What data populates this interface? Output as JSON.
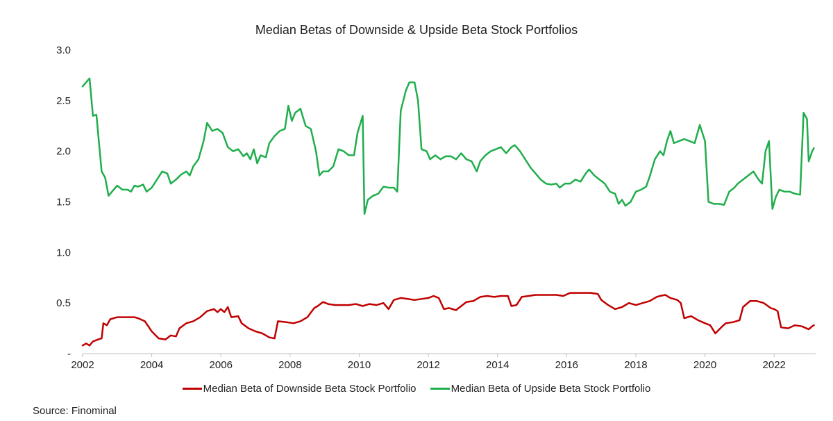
{
  "source": "Source: Finominal",
  "chart_data": {
    "type": "line",
    "title": "Median Betas of Downside & Upside Beta Stock Portfolios",
    "xlabel": "",
    "ylabel": "",
    "xlim": [
      2002,
      2023.2
    ],
    "ylim": [
      0,
      3.0
    ],
    "x_ticks": [
      2002,
      2004,
      2006,
      2008,
      2010,
      2012,
      2014,
      2016,
      2018,
      2020,
      2022
    ],
    "x_tick_labels": [
      "2002",
      "2004",
      "2006",
      "2008",
      "2010",
      "2012",
      "2014",
      "2016",
      "2018",
      "2020",
      "2022"
    ],
    "y_ticks": [
      0,
      0.5,
      1.0,
      1.5,
      2.0,
      2.5,
      3.0
    ],
    "y_tick_labels": [
      "-",
      "0.5",
      "1.0",
      "1.5",
      "2.0",
      "2.5",
      "3.0"
    ],
    "grid": false,
    "legend_position": "bottom",
    "series": [
      {
        "name": "Median Beta of Downside Beta Stock Portfolio",
        "color": "#c00000",
        "points": [
          [
            2002.0,
            0.08
          ],
          [
            2002.1,
            0.1
          ],
          [
            2002.2,
            0.08
          ],
          [
            2002.3,
            0.12
          ],
          [
            2002.45,
            0.14
          ],
          [
            2002.55,
            0.15
          ],
          [
            2002.6,
            0.3
          ],
          [
            2002.7,
            0.28
          ],
          [
            2002.8,
            0.34
          ],
          [
            2003.0,
            0.36
          ],
          [
            2003.3,
            0.36
          ],
          [
            2003.5,
            0.36
          ],
          [
            2003.6,
            0.35
          ],
          [
            2003.8,
            0.32
          ],
          [
            2004.0,
            0.22
          ],
          [
            2004.2,
            0.15
          ],
          [
            2004.4,
            0.14
          ],
          [
            2004.55,
            0.18
          ],
          [
            2004.7,
            0.17
          ],
          [
            2004.8,
            0.25
          ],
          [
            2005.0,
            0.3
          ],
          [
            2005.2,
            0.32
          ],
          [
            2005.4,
            0.36
          ],
          [
            2005.6,
            0.42
          ],
          [
            2005.8,
            0.44
          ],
          [
            2005.9,
            0.41
          ],
          [
            2006.0,
            0.44
          ],
          [
            2006.1,
            0.41
          ],
          [
            2006.2,
            0.46
          ],
          [
            2006.3,
            0.36
          ],
          [
            2006.5,
            0.37
          ],
          [
            2006.6,
            0.3
          ],
          [
            2006.8,
            0.25
          ],
          [
            2007.0,
            0.22
          ],
          [
            2007.2,
            0.2
          ],
          [
            2007.4,
            0.16
          ],
          [
            2007.55,
            0.15
          ],
          [
            2007.65,
            0.32
          ],
          [
            2007.9,
            0.31
          ],
          [
            2008.1,
            0.3
          ],
          [
            2008.3,
            0.32
          ],
          [
            2008.5,
            0.36
          ],
          [
            2008.7,
            0.45
          ],
          [
            2008.8,
            0.47
          ],
          [
            2008.95,
            0.51
          ],
          [
            2009.1,
            0.49
          ],
          [
            2009.3,
            0.48
          ],
          [
            2009.5,
            0.48
          ],
          [
            2009.7,
            0.48
          ],
          [
            2009.9,
            0.49
          ],
          [
            2010.1,
            0.47
          ],
          [
            2010.3,
            0.49
          ],
          [
            2010.5,
            0.48
          ],
          [
            2010.7,
            0.5
          ],
          [
            2010.85,
            0.44
          ],
          [
            2011.0,
            0.53
          ],
          [
            2011.2,
            0.55
          ],
          [
            2011.4,
            0.54
          ],
          [
            2011.6,
            0.53
          ],
          [
            2011.8,
            0.54
          ],
          [
            2012.0,
            0.55
          ],
          [
            2012.15,
            0.57
          ],
          [
            2012.3,
            0.55
          ],
          [
            2012.45,
            0.44
          ],
          [
            2012.6,
            0.45
          ],
          [
            2012.8,
            0.43
          ],
          [
            2012.95,
            0.47
          ],
          [
            2013.1,
            0.51
          ],
          [
            2013.3,
            0.52
          ],
          [
            2013.5,
            0.56
          ],
          [
            2013.7,
            0.57
          ],
          [
            2013.9,
            0.56
          ],
          [
            2014.1,
            0.57
          ],
          [
            2014.3,
            0.57
          ],
          [
            2014.4,
            0.47
          ],
          [
            2014.55,
            0.48
          ],
          [
            2014.7,
            0.56
          ],
          [
            2014.9,
            0.57
          ],
          [
            2015.1,
            0.58
          ],
          [
            2015.3,
            0.58
          ],
          [
            2015.5,
            0.58
          ],
          [
            2015.7,
            0.58
          ],
          [
            2015.9,
            0.57
          ],
          [
            2016.1,
            0.6
          ],
          [
            2016.3,
            0.6
          ],
          [
            2016.5,
            0.6
          ],
          [
            2016.7,
            0.6
          ],
          [
            2016.9,
            0.59
          ],
          [
            2017.0,
            0.53
          ],
          [
            2017.2,
            0.48
          ],
          [
            2017.4,
            0.44
          ],
          [
            2017.6,
            0.46
          ],
          [
            2017.8,
            0.5
          ],
          [
            2018.0,
            0.48
          ],
          [
            2018.2,
            0.5
          ],
          [
            2018.4,
            0.52
          ],
          [
            2018.6,
            0.56
          ],
          [
            2018.7,
            0.57
          ],
          [
            2018.85,
            0.58
          ],
          [
            2019.0,
            0.55
          ],
          [
            2019.2,
            0.53
          ],
          [
            2019.3,
            0.5
          ],
          [
            2019.4,
            0.35
          ],
          [
            2019.6,
            0.37
          ],
          [
            2019.8,
            0.33
          ],
          [
            2020.0,
            0.3
          ],
          [
            2020.15,
            0.28
          ],
          [
            2020.3,
            0.2
          ],
          [
            2020.5,
            0.27
          ],
          [
            2020.6,
            0.3
          ],
          [
            2020.8,
            0.31
          ],
          [
            2021.0,
            0.33
          ],
          [
            2021.1,
            0.46
          ],
          [
            2021.3,
            0.52
          ],
          [
            2021.5,
            0.52
          ],
          [
            2021.7,
            0.5
          ],
          [
            2021.9,
            0.45
          ],
          [
            2022.0,
            0.44
          ],
          [
            2022.1,
            0.42
          ],
          [
            2022.2,
            0.26
          ],
          [
            2022.4,
            0.25
          ],
          [
            2022.6,
            0.28
          ],
          [
            2022.8,
            0.27
          ],
          [
            2023.0,
            0.24
          ],
          [
            2023.1,
            0.27
          ],
          [
            2023.15,
            0.28
          ]
        ]
      },
      {
        "name": "Median Beta of Upside Beta Stock Portfolio",
        "color": "#1fae4b",
        "points": [
          [
            2002.0,
            2.64
          ],
          [
            2002.1,
            2.68
          ],
          [
            2002.2,
            2.72
          ],
          [
            2002.3,
            2.35
          ],
          [
            2002.4,
            2.36
          ],
          [
            2002.55,
            1.8
          ],
          [
            2002.65,
            1.74
          ],
          [
            2002.75,
            1.56
          ],
          [
            2002.85,
            1.6
          ],
          [
            2003.0,
            1.66
          ],
          [
            2003.15,
            1.62
          ],
          [
            2003.3,
            1.62
          ],
          [
            2003.4,
            1.6
          ],
          [
            2003.5,
            1.66
          ],
          [
            2003.6,
            1.65
          ],
          [
            2003.75,
            1.67
          ],
          [
            2003.85,
            1.6
          ],
          [
            2004.0,
            1.64
          ],
          [
            2004.15,
            1.72
          ],
          [
            2004.3,
            1.8
          ],
          [
            2004.45,
            1.78
          ],
          [
            2004.55,
            1.68
          ],
          [
            2004.7,
            1.72
          ],
          [
            2004.85,
            1.77
          ],
          [
            2005.0,
            1.8
          ],
          [
            2005.1,
            1.76
          ],
          [
            2005.2,
            1.85
          ],
          [
            2005.35,
            1.92
          ],
          [
            2005.5,
            2.1
          ],
          [
            2005.6,
            2.28
          ],
          [
            2005.75,
            2.2
          ],
          [
            2005.9,
            2.22
          ],
          [
            2006.05,
            2.18
          ],
          [
            2006.2,
            2.04
          ],
          [
            2006.35,
            2.0
          ],
          [
            2006.5,
            2.02
          ],
          [
            2006.65,
            1.95
          ],
          [
            2006.75,
            1.98
          ],
          [
            2006.85,
            1.92
          ],
          [
            2006.95,
            2.02
          ],
          [
            2007.05,
            1.88
          ],
          [
            2007.15,
            1.96
          ],
          [
            2007.3,
            1.94
          ],
          [
            2007.4,
            2.08
          ],
          [
            2007.55,
            2.15
          ],
          [
            2007.7,
            2.2
          ],
          [
            2007.85,
            2.22
          ],
          [
            2007.95,
            2.45
          ],
          [
            2008.05,
            2.3
          ],
          [
            2008.15,
            2.38
          ],
          [
            2008.3,
            2.42
          ],
          [
            2008.45,
            2.25
          ],
          [
            2008.6,
            2.22
          ],
          [
            2008.75,
            2.0
          ],
          [
            2008.85,
            1.76
          ],
          [
            2008.95,
            1.8
          ],
          [
            2009.1,
            1.8
          ],
          [
            2009.25,
            1.85
          ],
          [
            2009.4,
            2.02
          ],
          [
            2009.55,
            2.0
          ],
          [
            2009.7,
            1.96
          ],
          [
            2009.85,
            1.96
          ],
          [
            2009.95,
            2.18
          ],
          [
            2010.1,
            2.35
          ],
          [
            2010.15,
            1.38
          ],
          [
            2010.25,
            1.52
          ],
          [
            2010.4,
            1.56
          ],
          [
            2010.55,
            1.58
          ],
          [
            2010.7,
            1.65
          ],
          [
            2010.85,
            1.64
          ],
          [
            2011.0,
            1.64
          ],
          [
            2011.1,
            1.6
          ],
          [
            2011.2,
            2.4
          ],
          [
            2011.35,
            2.6
          ],
          [
            2011.45,
            2.68
          ],
          [
            2011.6,
            2.68
          ],
          [
            2011.7,
            2.5
          ],
          [
            2011.8,
            2.02
          ],
          [
            2011.95,
            2.0
          ],
          [
            2012.05,
            1.92
          ],
          [
            2012.2,
            1.96
          ],
          [
            2012.35,
            1.92
          ],
          [
            2012.5,
            1.95
          ],
          [
            2012.65,
            1.95
          ],
          [
            2012.8,
            1.92
          ],
          [
            2012.95,
            1.98
          ],
          [
            2013.1,
            1.92
          ],
          [
            2013.25,
            1.9
          ],
          [
            2013.4,
            1.8
          ],
          [
            2013.5,
            1.9
          ],
          [
            2013.65,
            1.96
          ],
          [
            2013.8,
            2.0
          ],
          [
            2013.95,
            2.02
          ],
          [
            2014.1,
            2.04
          ],
          [
            2014.25,
            1.98
          ],
          [
            2014.4,
            2.04
          ],
          [
            2014.5,
            2.06
          ],
          [
            2014.65,
            2.0
          ],
          [
            2014.8,
            1.92
          ],
          [
            2014.95,
            1.84
          ],
          [
            2015.1,
            1.78
          ],
          [
            2015.25,
            1.72
          ],
          [
            2015.4,
            1.68
          ],
          [
            2015.55,
            1.67
          ],
          [
            2015.7,
            1.68
          ],
          [
            2015.8,
            1.64
          ],
          [
            2015.95,
            1.68
          ],
          [
            2016.1,
            1.68
          ],
          [
            2016.25,
            1.72
          ],
          [
            2016.4,
            1.7
          ],
          [
            2016.55,
            1.78
          ],
          [
            2016.65,
            1.82
          ],
          [
            2016.8,
            1.76
          ],
          [
            2016.95,
            1.72
          ],
          [
            2017.1,
            1.68
          ],
          [
            2017.25,
            1.6
          ],
          [
            2017.4,
            1.58
          ],
          [
            2017.5,
            1.48
          ],
          [
            2017.6,
            1.52
          ],
          [
            2017.7,
            1.46
          ],
          [
            2017.85,
            1.5
          ],
          [
            2018.0,
            1.6
          ],
          [
            2018.15,
            1.62
          ],
          [
            2018.3,
            1.65
          ],
          [
            2018.4,
            1.75
          ],
          [
            2018.55,
            1.92
          ],
          [
            2018.7,
            2.0
          ],
          [
            2018.8,
            1.96
          ],
          [
            2018.9,
            2.1
          ],
          [
            2019.0,
            2.2
          ],
          [
            2019.1,
            2.08
          ],
          [
            2019.25,
            2.1
          ],
          [
            2019.4,
            2.12
          ],
          [
            2019.55,
            2.1
          ],
          [
            2019.7,
            2.08
          ],
          [
            2019.85,
            2.26
          ],
          [
            2020.0,
            2.1
          ],
          [
            2020.1,
            1.5
          ],
          [
            2020.25,
            1.48
          ],
          [
            2020.4,
            1.48
          ],
          [
            2020.55,
            1.47
          ],
          [
            2020.7,
            1.6
          ],
          [
            2020.85,
            1.64
          ],
          [
            2020.95,
            1.68
          ],
          [
            2021.1,
            1.72
          ],
          [
            2021.25,
            1.76
          ],
          [
            2021.4,
            1.8
          ],
          [
            2021.55,
            1.72
          ],
          [
            2021.65,
            1.68
          ],
          [
            2021.75,
            2.0
          ],
          [
            2021.85,
            2.1
          ],
          [
            2021.95,
            1.43
          ],
          [
            2022.05,
            1.55
          ],
          [
            2022.15,
            1.62
          ],
          [
            2022.3,
            1.6
          ],
          [
            2022.45,
            1.6
          ],
          [
            2022.6,
            1.58
          ],
          [
            2022.75,
            1.57
          ],
          [
            2022.85,
            2.38
          ],
          [
            2022.95,
            2.32
          ],
          [
            2023.0,
            1.9
          ],
          [
            2023.1,
            2.0
          ],
          [
            2023.15,
            2.03
          ]
        ]
      }
    ]
  }
}
